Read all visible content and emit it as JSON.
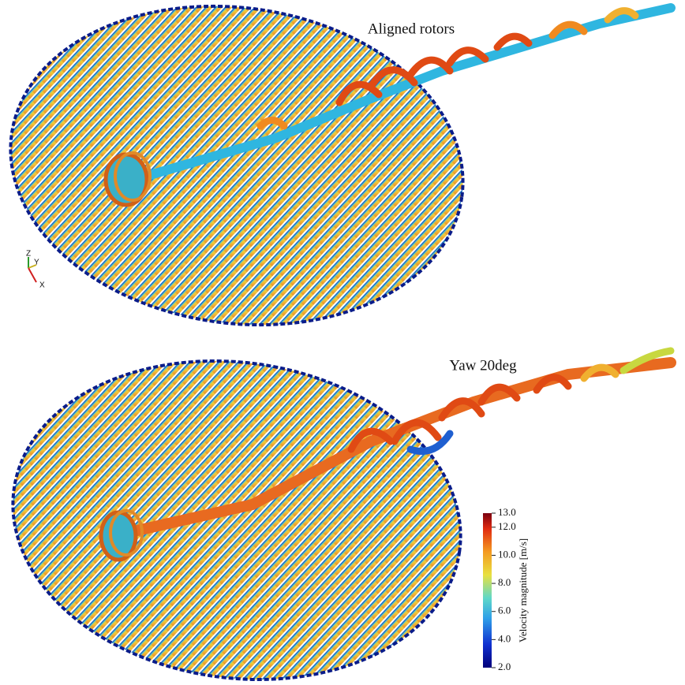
{
  "panels": [
    {
      "title": "Aligned rotors"
    },
    {
      "title": "Yaw 20deg"
    }
  ],
  "axes_triad": {
    "z": "Z",
    "y": "Y",
    "x": "X"
  },
  "colorbar": {
    "label": "Velocity magnitude  [m/s]",
    "ticks": [
      {
        "value": 13,
        "label": "13.0"
      },
      {
        "value": 12,
        "label": "12.0"
      },
      {
        "value": 10,
        "label": "10.0"
      },
      {
        "value": 8,
        "label": "8.0"
      },
      {
        "value": 6,
        "label": "6.0"
      },
      {
        "value": 4,
        "label": "4.0"
      },
      {
        "value": 2,
        "label": "2.0"
      }
    ]
  }
}
